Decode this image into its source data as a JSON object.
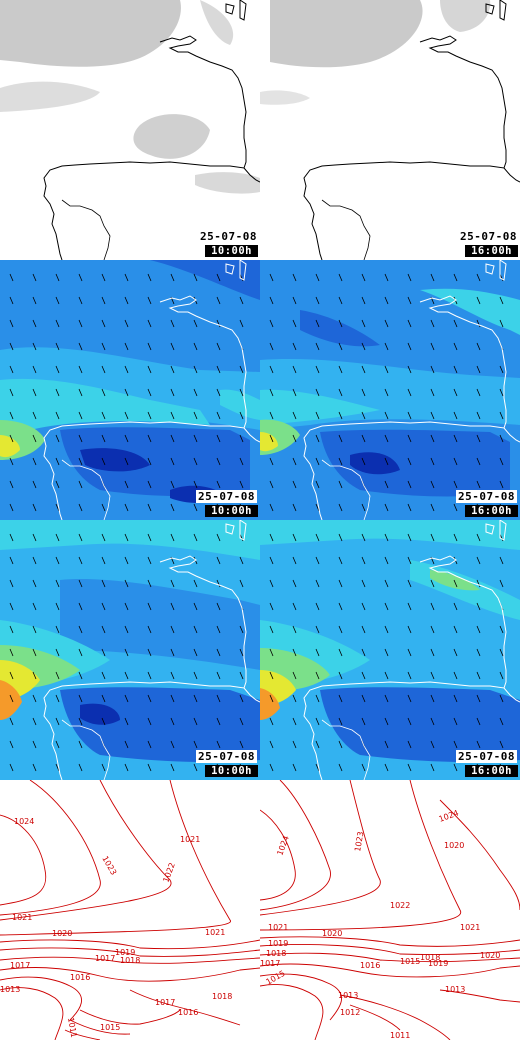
{
  "panels": [
    {
      "row": 0,
      "col": 0,
      "kind": "cloud",
      "date": "25-07-08",
      "time": "10:00h"
    },
    {
      "row": 0,
      "col": 1,
      "kind": "cloud",
      "date": "25-07-08",
      "time": "16:00h"
    },
    {
      "row": 1,
      "col": 0,
      "kind": "wind",
      "date": "25-07-08",
      "time": "10:00h"
    },
    {
      "row": 1,
      "col": 1,
      "kind": "wind",
      "date": "25-07-08",
      "time": "16:00h"
    },
    {
      "row": 2,
      "col": 0,
      "kind": "gust",
      "date": "25-07-08",
      "time": "10:00h"
    },
    {
      "row": 2,
      "col": 1,
      "kind": "gust",
      "date": "25-07-08",
      "time": "16:00h"
    },
    {
      "row": 3,
      "col": 0,
      "kind": "pressure",
      "isobar_labels": [
        "1024",
        "1023",
        "1022",
        "1021",
        "1021",
        "1020",
        "1019",
        "1018",
        "1017",
        "1016",
        "1015",
        "1015",
        "1014",
        "1013",
        "1013",
        "1012",
        "1011",
        "1010",
        "1019",
        "1018",
        "1017"
      ]
    },
    {
      "row": 3,
      "col": 1,
      "kind": "pressure",
      "isobar_labels": [
        "1024",
        "1024",
        "1023",
        "1022",
        "1021",
        "1021",
        "1020",
        "1020",
        "1019",
        "1018",
        "1017",
        "1016",
        "1015",
        "1014",
        "1013",
        "1012",
        "1011",
        "1017",
        "1015",
        "1014",
        "1013"
      ]
    }
  ],
  "colors": {
    "coast": "#000000",
    "coast_on_color": "#ffffff",
    "isobar": "#cc0000",
    "cloud": "#bdbdbd",
    "wind_scale": [
      "#1e66d8",
      "#2a8fe8",
      "#33b2f0",
      "#3cd2e8",
      "#7be08a",
      "#e4e832",
      "#f59a2a"
    ]
  }
}
